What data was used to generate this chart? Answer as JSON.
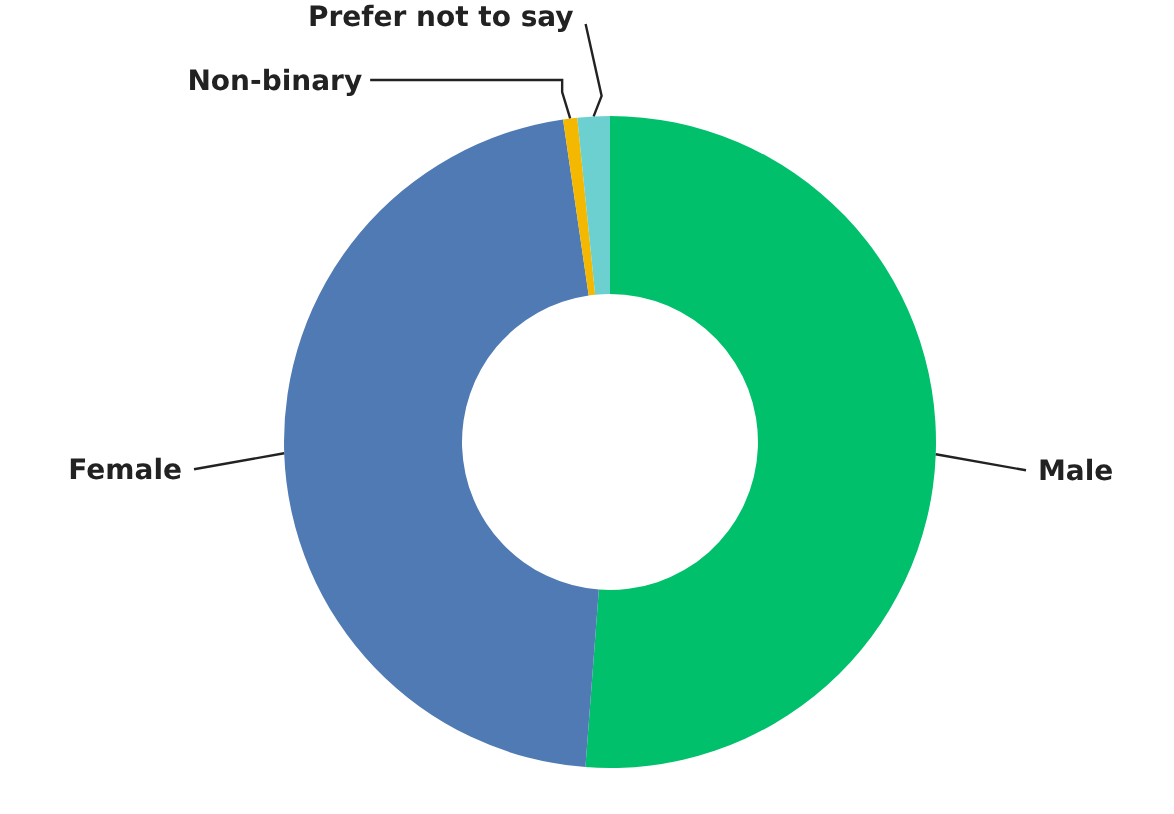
{
  "chart_data": {
    "type": "donut",
    "categories": [
      "Male",
      "Female",
      "Non-binary",
      "Prefer not to say"
    ],
    "values": [
      51.2,
      46.5,
      0.7,
      1.6
    ],
    "colors": [
      "#00c06b",
      "#4f7ab3",
      "#f5b800",
      "#6ccfd0"
    ]
  }
}
